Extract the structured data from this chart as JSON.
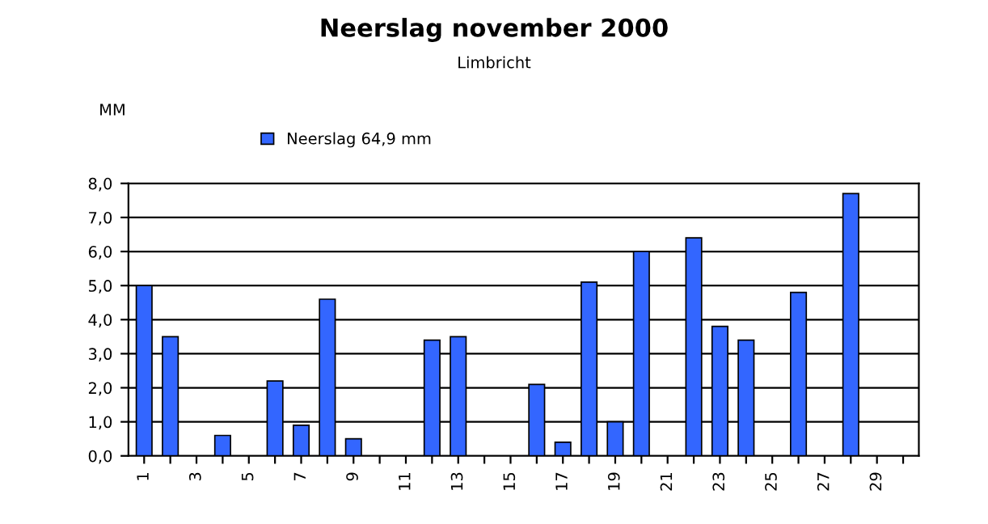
{
  "chart_data": {
    "type": "bar",
    "title": "Neerslag november 2000",
    "subtitle": "Limbricht",
    "ylabel": "MM",
    "categories": [
      "1",
      null,
      "3",
      null,
      "5",
      null,
      "7",
      null,
      "9",
      null,
      "11",
      null,
      "13",
      null,
      "15",
      null,
      "17",
      null,
      "19",
      null,
      "21",
      null,
      "23",
      null,
      "25",
      null,
      "27",
      null,
      "29",
      null
    ],
    "series": [
      {
        "name": "Neerslag 64,9 mm",
        "color": "#3366ff",
        "values": [
          5.0,
          3.5,
          null,
          0.6,
          null,
          2.2,
          0.9,
          4.6,
          0.5,
          null,
          null,
          3.4,
          3.5,
          null,
          null,
          2.1,
          0.4,
          5.1,
          1.0,
          6.0,
          null,
          6.4,
          3.8,
          3.4,
          null,
          4.8,
          null,
          7.7,
          null,
          null
        ]
      }
    ],
    "ylim": [
      0,
      8
    ],
    "yticks": [
      {
        "value": 0,
        "label": "0,0"
      },
      {
        "value": 1,
        "label": "1,0"
      },
      {
        "value": 2,
        "label": "2,0"
      },
      {
        "value": 3,
        "label": "3,0"
      },
      {
        "value": 4,
        "label": "4,0"
      },
      {
        "value": 5,
        "label": "5,0"
      },
      {
        "value": 6,
        "label": "6,0"
      },
      {
        "value": 7,
        "label": "7,0"
      },
      {
        "value": 8,
        "label": "8,0"
      }
    ],
    "grid": "y",
    "legend": "top"
  }
}
